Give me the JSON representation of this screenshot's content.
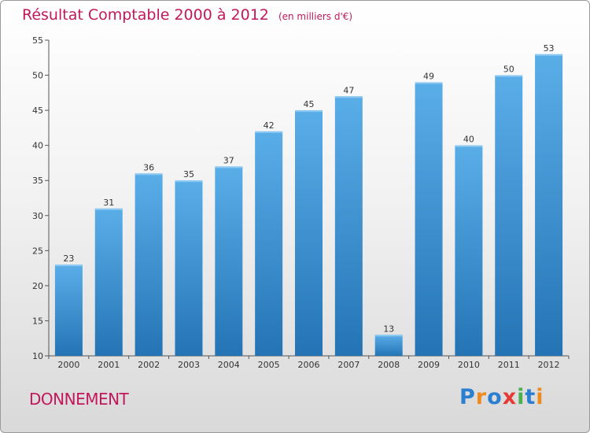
{
  "header": {
    "title": "Résultat Comptable 2000 à 2012",
    "subtitle": "(en milliers d'€)"
  },
  "footer": {
    "commune": "DONNEMENT",
    "logo": "Proxiti",
    "logo_letters": [
      {
        "ch": "P",
        "color": "#2a7fd0"
      },
      {
        "ch": "r",
        "color": "#ef8a1e"
      },
      {
        "ch": "o",
        "color": "#2a7fd0"
      },
      {
        "ch": "x",
        "color": "#e53935"
      },
      {
        "ch": "i",
        "color": "#4caf50"
      },
      {
        "ch": "t",
        "color": "#2a7fd0"
      },
      {
        "ch": "i",
        "color": "#ef8a1e"
      }
    ]
  },
  "chart_data": {
    "type": "bar",
    "title": "Résultat Comptable 2000 à 2012",
    "ylabel": "",
    "xlabel": "",
    "categories": [
      "2000",
      "2001",
      "2002",
      "2003",
      "2004",
      "2005",
      "2006",
      "2007",
      "2008",
      "2009",
      "2010",
      "2011",
      "2012"
    ],
    "values": [
      23,
      31,
      36,
      35,
      37,
      42,
      45,
      47,
      13,
      49,
      40,
      50,
      53
    ],
    "ylim": [
      10,
      55
    ],
    "yticks": [
      10,
      15,
      20,
      25,
      30,
      35,
      40,
      45,
      50,
      55
    ],
    "grid": false,
    "bar_color_top": "#5aaee8",
    "bar_color_bottom": "#2474b5"
  }
}
